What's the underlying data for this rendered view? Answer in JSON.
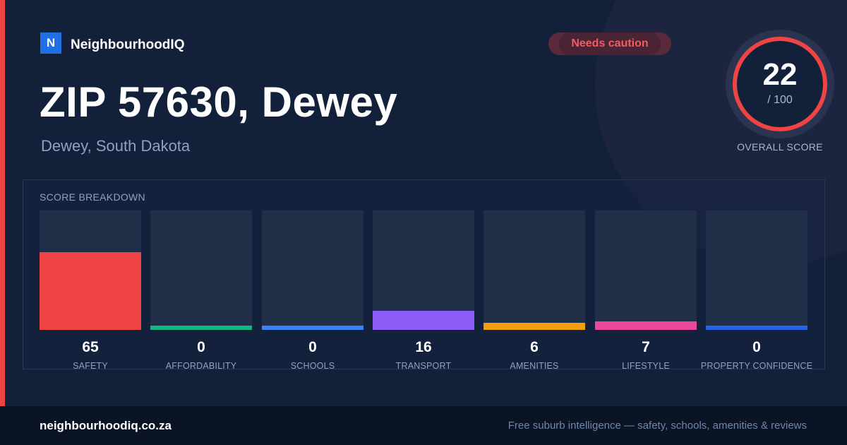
{
  "brand": {
    "mark": "N",
    "name": "NeighbourhoodIQ"
  },
  "badge": {
    "label": "Needs caution"
  },
  "headline": {
    "title": "ZIP 57630, Dewey",
    "subtitle": "Dewey, South Dakota"
  },
  "overall": {
    "value": "22",
    "of": "/ 100",
    "caption": "OVERALL SCORE",
    "ring_color": "#ef4444",
    "fraction": 0.22
  },
  "breakdown": {
    "title": "SCORE BREAKDOWN",
    "max": 100,
    "items": [
      {
        "label": "SAFETY",
        "value": 65,
        "color": "#ef4444"
      },
      {
        "label": "AFFORDABILITY",
        "value": 0,
        "color": "#10b981"
      },
      {
        "label": "SCHOOLS",
        "value": 0,
        "color": "#3b82f6"
      },
      {
        "label": "TRANSPORT",
        "value": 16,
        "color": "#8b5cf6"
      },
      {
        "label": "AMENITIES",
        "value": 6,
        "color": "#f59e0b"
      },
      {
        "label": "LIFESTYLE",
        "value": 7,
        "color": "#ec4899"
      },
      {
        "label": "PROPERTY CONFIDENCE",
        "value": 0,
        "color": "#2563eb"
      }
    ]
  },
  "footer": {
    "domain": "neighbourhoodiq.co.za",
    "tagline": "Free suburb intelligence — safety, schools, amenities & reviews"
  }
}
